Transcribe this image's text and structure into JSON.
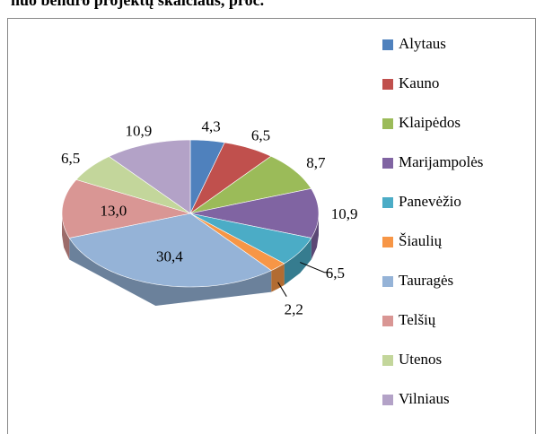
{
  "chart_data": {
    "type": "pie3d",
    "title": "nuo bendro projektų skaičiaus, proc.",
    "categories": [
      "Alytaus",
      "Kauno",
      "Klaipėdos",
      "Marijampolės",
      "Panevėžio",
      "Šiaulių",
      "Tauragės",
      "Telšių",
      "Utenos",
      "Vilniaus"
    ],
    "values": [
      4.3,
      6.5,
      8.7,
      10.9,
      6.5,
      2.2,
      30.4,
      13.0,
      6.5,
      10.9
    ],
    "value_labels": [
      "4,3",
      "6,5",
      "8,7",
      "10,9",
      "6,5",
      "2,2",
      "30,4",
      "13,0",
      "6,5",
      "10,9"
    ],
    "colors": [
      "#4f81bd",
      "#c0504d",
      "#9bbb59",
      "#8064a2",
      "#4bacc6",
      "#f79646",
      "#95b3d7",
      "#d99694",
      "#c3d69b",
      "#b3a2c7"
    ],
    "legend": "right"
  }
}
